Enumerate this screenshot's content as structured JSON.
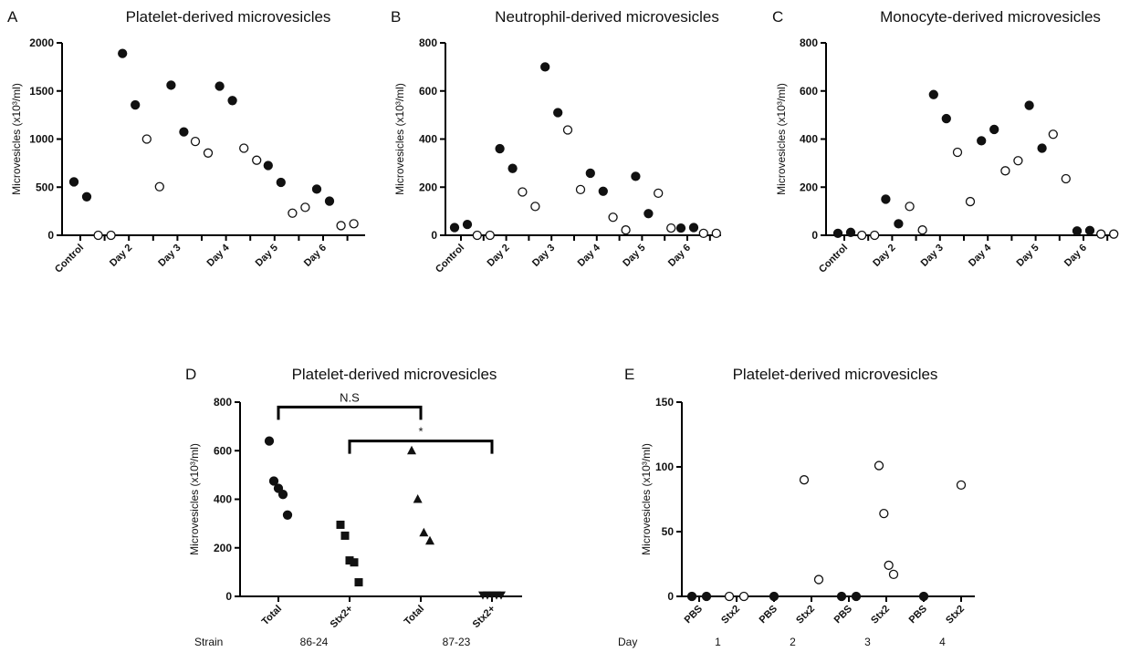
{
  "chart_data": [
    {
      "id": "A",
      "panel_label": "A",
      "type": "scatter",
      "title": "Platelet-derived microvesicles",
      "ylabel": "Microvesicles (x10³/ml)",
      "ylim": [
        0,
        2000
      ],
      "yticks": [
        0,
        500,
        1000,
        1500,
        2000
      ],
      "categories": [
        "Control",
        "",
        "Day 2",
        "",
        "Day 3",
        "",
        "Day 4",
        "",
        "Day 5",
        "",
        "Day 6",
        ""
      ],
      "points": [
        {
          "cat": 0,
          "y": 555,
          "filled": true
        },
        {
          "cat": 0,
          "y": 400,
          "filled": true
        },
        {
          "cat": 1,
          "y": 0,
          "filled": false
        },
        {
          "cat": 1,
          "y": 0,
          "filled": false
        },
        {
          "cat": 2,
          "y": 1890,
          "filled": true
        },
        {
          "cat": 2,
          "y": 1355,
          "filled": true
        },
        {
          "cat": 3,
          "y": 1000,
          "filled": false
        },
        {
          "cat": 3,
          "y": 505,
          "filled": false
        },
        {
          "cat": 4,
          "y": 1560,
          "filled": true
        },
        {
          "cat": 4,
          "y": 1075,
          "filled": true
        },
        {
          "cat": 5,
          "y": 975,
          "filled": false
        },
        {
          "cat": 5,
          "y": 855,
          "filled": false
        },
        {
          "cat": 6,
          "y": 1550,
          "filled": true
        },
        {
          "cat": 6,
          "y": 1400,
          "filled": true
        },
        {
          "cat": 7,
          "y": 905,
          "filled": false
        },
        {
          "cat": 7,
          "y": 780,
          "filled": false
        },
        {
          "cat": 8,
          "y": 725,
          "filled": true
        },
        {
          "cat": 8,
          "y": 550,
          "filled": true
        },
        {
          "cat": 9,
          "y": 230,
          "filled": false
        },
        {
          "cat": 9,
          "y": 290,
          "filled": false
        },
        {
          "cat": 10,
          "y": 480,
          "filled": true
        },
        {
          "cat": 10,
          "y": 355,
          "filled": true
        },
        {
          "cat": 11,
          "y": 100,
          "filled": false
        },
        {
          "cat": 11,
          "y": 120,
          "filled": false
        }
      ]
    },
    {
      "id": "B",
      "panel_label": "B",
      "type": "scatter",
      "title": "Neutrophil-derived microvesicles",
      "ylabel": "Microvesicles (x10³/ml)",
      "ylim": [
        0,
        800
      ],
      "yticks": [
        0,
        200,
        400,
        600,
        800
      ],
      "categories": [
        "Control",
        "",
        "Day 2",
        "",
        "Day 3",
        "",
        "Day 4",
        "",
        "Day 5",
        "",
        "Day 6",
        ""
      ],
      "points": [
        {
          "cat": 0,
          "y": 32,
          "filled": true
        },
        {
          "cat": 0,
          "y": 45,
          "filled": true
        },
        {
          "cat": 1,
          "y": 0,
          "filled": false
        },
        {
          "cat": 1,
          "y": 0,
          "filled": false
        },
        {
          "cat": 2,
          "y": 360,
          "filled": true
        },
        {
          "cat": 2,
          "y": 278,
          "filled": true
        },
        {
          "cat": 3,
          "y": 180,
          "filled": false
        },
        {
          "cat": 3,
          "y": 120,
          "filled": false
        },
        {
          "cat": 4,
          "y": 700,
          "filled": true
        },
        {
          "cat": 4,
          "y": 510,
          "filled": true
        },
        {
          "cat": 5,
          "y": 438,
          "filled": false
        },
        {
          "cat": 5,
          "y": 190,
          "filled": false
        },
        {
          "cat": 6,
          "y": 258,
          "filled": true
        },
        {
          "cat": 6,
          "y": 183,
          "filled": true
        },
        {
          "cat": 7,
          "y": 75,
          "filled": false
        },
        {
          "cat": 7,
          "y": 22,
          "filled": false
        },
        {
          "cat": 8,
          "y": 245,
          "filled": true
        },
        {
          "cat": 8,
          "y": 90,
          "filled": true
        },
        {
          "cat": 9,
          "y": 175,
          "filled": false
        },
        {
          "cat": 9,
          "y": 30,
          "filled": false
        },
        {
          "cat": 10,
          "y": 30,
          "filled": true
        },
        {
          "cat": 10,
          "y": 32,
          "filled": true
        },
        {
          "cat": 11,
          "y": 8,
          "filled": false
        },
        {
          "cat": 11,
          "y": 8,
          "filled": false
        }
      ]
    },
    {
      "id": "C",
      "panel_label": "C",
      "type": "scatter",
      "title": "Monocyte-derived microvesicles",
      "ylabel": "Microvesicles (x10³/ml)",
      "ylim": [
        0,
        800
      ],
      "yticks": [
        0,
        200,
        400,
        600,
        800
      ],
      "categories": [
        "Control",
        "",
        "Day 2",
        "",
        "Day 3",
        "",
        "Day 4",
        "",
        "Day 5",
        "",
        "Day 6",
        ""
      ],
      "points": [
        {
          "cat": 0,
          "y": 8,
          "filled": true
        },
        {
          "cat": 0,
          "y": 12,
          "filled": true
        },
        {
          "cat": 1,
          "y": 0,
          "filled": false
        },
        {
          "cat": 1,
          "y": 0,
          "filled": false
        },
        {
          "cat": 2,
          "y": 150,
          "filled": true
        },
        {
          "cat": 2,
          "y": 48,
          "filled": true
        },
        {
          "cat": 3,
          "y": 120,
          "filled": false
        },
        {
          "cat": 3,
          "y": 22,
          "filled": false
        },
        {
          "cat": 4,
          "y": 585,
          "filled": true
        },
        {
          "cat": 4,
          "y": 485,
          "filled": true
        },
        {
          "cat": 5,
          "y": 345,
          "filled": false
        },
        {
          "cat": 5,
          "y": 140,
          "filled": false
        },
        {
          "cat": 6,
          "y": 393,
          "filled": true
        },
        {
          "cat": 6,
          "y": 440,
          "filled": true
        },
        {
          "cat": 7,
          "y": 268,
          "filled": false
        },
        {
          "cat": 7,
          "y": 310,
          "filled": false
        },
        {
          "cat": 8,
          "y": 540,
          "filled": true
        },
        {
          "cat": 8,
          "y": 362,
          "filled": true
        },
        {
          "cat": 9,
          "y": 420,
          "filled": false
        },
        {
          "cat": 9,
          "y": 235,
          "filled": false
        },
        {
          "cat": 10,
          "y": 18,
          "filled": true
        },
        {
          "cat": 10,
          "y": 20,
          "filled": true
        },
        {
          "cat": 11,
          "y": 5,
          "filled": false
        },
        {
          "cat": 11,
          "y": 5,
          "filled": false
        }
      ]
    },
    {
      "id": "D",
      "panel_label": "D",
      "type": "scatter",
      "title": "Platelet-derived microvesicles",
      "ylabel": "Microvesicles (x10³/ml)",
      "ylim": [
        0,
        800
      ],
      "yticks": [
        0,
        200,
        400,
        600,
        800
      ],
      "categories": [
        "Total",
        "Stx2+",
        "Total",
        "Stx2+"
      ],
      "row_label": "Strain",
      "groups": [
        {
          "label": "86-24",
          "categories": [
            0,
            1
          ]
        },
        {
          "label": "87-23",
          "categories": [
            2,
            3
          ]
        }
      ],
      "points": [
        {
          "cat": 0,
          "y": 640,
          "shape": "circle"
        },
        {
          "cat": 0,
          "y": 475,
          "shape": "circle"
        },
        {
          "cat": 0,
          "y": 445,
          "shape": "circle"
        },
        {
          "cat": 0,
          "y": 420,
          "shape": "circle"
        },
        {
          "cat": 0,
          "y": 335,
          "shape": "circle"
        },
        {
          "cat": 1,
          "y": 295,
          "shape": "square"
        },
        {
          "cat": 1,
          "y": 250,
          "shape": "square"
        },
        {
          "cat": 1,
          "y": 148,
          "shape": "square"
        },
        {
          "cat": 1,
          "y": 140,
          "shape": "square"
        },
        {
          "cat": 1,
          "y": 58,
          "shape": "square"
        },
        {
          "cat": 2,
          "y": 600,
          "shape": "triangle"
        },
        {
          "cat": 2,
          "y": 400,
          "shape": "triangle"
        },
        {
          "cat": 2,
          "y": 262,
          "shape": "triangle"
        },
        {
          "cat": 2,
          "y": 228,
          "shape": "triangle"
        },
        {
          "cat": 3,
          "y": 5,
          "shape": "triangle-down"
        },
        {
          "cat": 3,
          "y": 5,
          "shape": "triangle-down"
        },
        {
          "cat": 3,
          "y": 5,
          "shape": "triangle-down"
        },
        {
          "cat": 3,
          "y": 5,
          "shape": "triangle-down"
        },
        {
          "cat": 3,
          "y": 5,
          "shape": "triangle-down"
        }
      ],
      "annotations": [
        {
          "label": "N.S",
          "from": 0,
          "to": 2,
          "y": 780
        },
        {
          "label": "*",
          "from": 1,
          "to": 3,
          "y": 640
        }
      ]
    },
    {
      "id": "E",
      "panel_label": "E",
      "type": "scatter",
      "title": "Platelet-derived microvesicles",
      "ylabel": "Microvesicles (x10³/ml)",
      "ylim": [
        0,
        150
      ],
      "yticks": [
        0,
        50,
        100,
        150
      ],
      "categories": [
        "PBS",
        "Stx2",
        "PBS",
        "Stx2",
        "PBS",
        "Stx2",
        "PBS",
        "Stx2"
      ],
      "row_label": "Day",
      "groups": [
        {
          "label": "1",
          "categories": [
            0,
            1
          ]
        },
        {
          "label": "2",
          "categories": [
            2,
            3
          ]
        },
        {
          "label": "3",
          "categories": [
            4,
            5
          ]
        },
        {
          "label": "4",
          "categories": [
            6,
            7
          ]
        }
      ],
      "points": [
        {
          "cat": 0,
          "y": 0,
          "filled": true
        },
        {
          "cat": 0,
          "y": 0,
          "filled": true
        },
        {
          "cat": 1,
          "y": 0,
          "filled": false
        },
        {
          "cat": 1,
          "y": 0,
          "filled": false
        },
        {
          "cat": 2,
          "y": 0,
          "filled": true
        },
        {
          "cat": 3,
          "y": 90,
          "filled": false
        },
        {
          "cat": 3,
          "y": 13,
          "filled": false
        },
        {
          "cat": 4,
          "y": 0,
          "filled": true
        },
        {
          "cat": 4,
          "y": 0,
          "filled": true
        },
        {
          "cat": 5,
          "y": 101,
          "filled": false
        },
        {
          "cat": 5,
          "y": 64,
          "filled": false
        },
        {
          "cat": 5,
          "y": 24,
          "filled": false
        },
        {
          "cat": 5,
          "y": 17,
          "filled": false
        },
        {
          "cat": 6,
          "y": 0,
          "filled": true
        },
        {
          "cat": 7,
          "y": 86,
          "filled": false
        }
      ]
    }
  ]
}
